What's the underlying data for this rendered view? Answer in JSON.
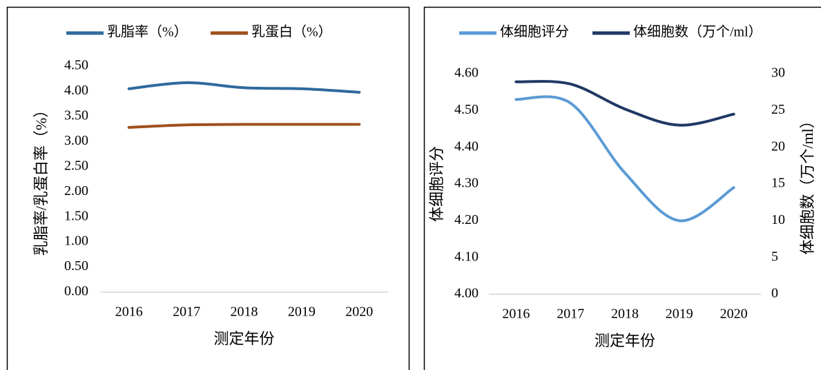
{
  "chart_data": [
    {
      "type": "line",
      "xlabel": "测定年份",
      "ylabel": "乳脂率/乳蛋白率（%）",
      "categories": [
        "2016",
        "2017",
        "2018",
        "2019",
        "2020"
      ],
      "series": [
        {
          "name": "乳脂率（%）",
          "color": "#2e6a9c",
          "values": [
            4.05,
            4.17,
            4.07,
            4.05,
            3.98
          ]
        },
        {
          "name": "乳蛋白（%）",
          "color": "#a0501c",
          "values": [
            3.28,
            3.33,
            3.34,
            3.34,
            3.34
          ]
        }
      ],
      "ylim": [
        0,
        4.5
      ],
      "yticks": [
        {
          "value": 0,
          "label": "0.00"
        },
        {
          "value": 0.5,
          "label": "0.50"
        },
        {
          "value": 1,
          "label": "1.00"
        },
        {
          "value": 1.5,
          "label": "1.50"
        },
        {
          "value": 2,
          "label": "2.00"
        },
        {
          "value": 2.5,
          "label": "2.50"
        },
        {
          "value": 3,
          "label": "3.00"
        },
        {
          "value": 3.5,
          "label": "3.50"
        },
        {
          "value": 4,
          "label": "4.00"
        },
        {
          "value": 4.5,
          "label": "4.50"
        }
      ]
    },
    {
      "type": "line",
      "xlabel": "测定年份",
      "ylabel": "体细胞评分",
      "y2label": "体细胞数（万个/ml）",
      "categories": [
        "2016",
        "2017",
        "2018",
        "2019",
        "2020"
      ],
      "series": [
        {
          "name": "体细胞评分",
          "color": "#5b9bd5",
          "values": [
            4.53,
            4.52,
            4.33,
            4.2,
            4.29
          ]
        },
        {
          "name": "体细胞数（万个/ml）",
          "color": "#203864",
          "axis": "y2",
          "values": [
            28.9,
            28.6,
            25.2,
            23,
            24.5
          ]
        }
      ],
      "ylim": [
        4,
        4.6
      ],
      "yticks": [
        {
          "value": 4,
          "label": "4.00"
        },
        {
          "value": 4.1,
          "label": "4.10"
        },
        {
          "value": 4.2,
          "label": "4.20"
        },
        {
          "value": 4.3,
          "label": "4.30"
        },
        {
          "value": 4.4,
          "label": "4.40"
        },
        {
          "value": 4.5,
          "label": "4.50"
        },
        {
          "value": 4.6,
          "label": "4.60"
        }
      ],
      "y2lim": [
        0,
        30
      ],
      "y2ticks": [
        0,
        5,
        10,
        15,
        20,
        25,
        30
      ]
    }
  ]
}
